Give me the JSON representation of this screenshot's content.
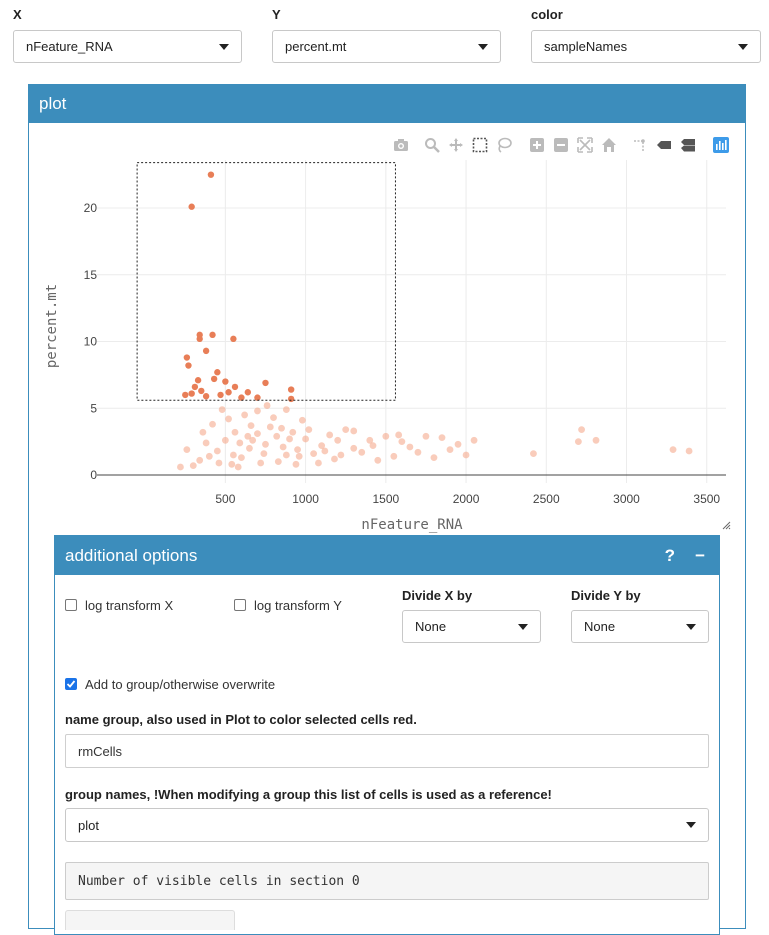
{
  "selectors": {
    "x": {
      "label": "X",
      "value": "nFeature_RNA"
    },
    "y": {
      "label": "Y",
      "value": "percent.mt"
    },
    "color": {
      "label": "color",
      "value": "sampleNames"
    }
  },
  "plot_box": {
    "title": "plot"
  },
  "toolbar": [
    "camera-icon",
    "zoom-icon",
    "pan-icon",
    "box-select-icon",
    "lasso-select-icon",
    "zoom-in-icon",
    "zoom-out-icon",
    "autoscale-icon",
    "reset-axes-icon",
    "spike-lines-icon",
    "hover-closest-icon",
    "hover-compare-icon",
    "plotly-logo-icon"
  ],
  "chart_data": {
    "type": "scatter",
    "xlabel": "nFeature_RNA",
    "ylabel": "percent.mt",
    "xlim": [
      -300,
      3620
    ],
    "ylim": [
      -0.6,
      23.6
    ],
    "xticks": [
      500,
      1000,
      1500,
      2000,
      2500,
      3000,
      3500
    ],
    "yticks": [
      0,
      5,
      10,
      15,
      20
    ],
    "selection_box": {
      "x": [
        -50,
        1560
      ],
      "y": [
        5.6,
        23.4
      ]
    },
    "series": [
      {
        "selected": true,
        "color": "#e87e57",
        "points": [
          [
            410,
            22.5
          ],
          [
            290,
            20.1
          ],
          [
            340,
            10.5
          ],
          [
            340,
            10.2
          ],
          [
            420,
            10.5
          ],
          [
            550,
            10.2
          ],
          [
            260,
            8.8
          ],
          [
            380,
            9.3
          ],
          [
            450,
            7.7
          ],
          [
            430,
            7.2
          ],
          [
            330,
            7.1
          ],
          [
            270,
            8.2
          ],
          [
            500,
            7.0
          ],
          [
            750,
            6.9
          ],
          [
            560,
            6.6
          ],
          [
            640,
            6.2
          ],
          [
            310,
            6.6
          ],
          [
            350,
            6.3
          ],
          [
            290,
            6.1
          ],
          [
            910,
            6.4
          ],
          [
            470,
            6.0
          ],
          [
            520,
            6.2
          ],
          [
            700,
            5.8
          ],
          [
            380,
            5.9
          ],
          [
            600,
            5.8
          ],
          [
            250,
            6.0
          ],
          [
            910,
            5.7
          ]
        ]
      },
      {
        "selected": false,
        "color": "#f4a383",
        "points": [
          [
            800,
            4.3
          ],
          [
            850,
            3.5
          ],
          [
            700,
            3.1
          ],
          [
            900,
            2.7
          ],
          [
            750,
            2.3
          ],
          [
            650,
            2.0
          ],
          [
            950,
            1.9
          ],
          [
            1050,
            1.6
          ],
          [
            600,
            1.3
          ],
          [
            500,
            2.6
          ],
          [
            550,
            1.5
          ],
          [
            1100,
            2.2
          ],
          [
            1200,
            2.6
          ],
          [
            1300,
            2.0
          ],
          [
            1400,
            2.6
          ],
          [
            1500,
            2.9
          ],
          [
            1600,
            2.5
          ],
          [
            1750,
            2.9
          ],
          [
            1850,
            2.8
          ],
          [
            1950,
            2.3
          ],
          [
            2050,
            2.6
          ],
          [
            1900,
            1.9
          ],
          [
            2000,
            1.5
          ],
          [
            1700,
            1.7
          ],
          [
            2420,
            1.6
          ],
          [
            2720,
            3.4
          ],
          [
            2700,
            2.5
          ],
          [
            2810,
            2.6
          ],
          [
            3290,
            1.9
          ],
          [
            3390,
            1.8
          ],
          [
            420,
            3.8
          ],
          [
            380,
            2.4
          ],
          [
            340,
            1.1
          ],
          [
            300,
            0.7
          ],
          [
            260,
            1.9
          ],
          [
            220,
            0.6
          ],
          [
            480,
            4.9
          ],
          [
            520,
            4.2
          ],
          [
            620,
            4.5
          ],
          [
            700,
            4.8
          ],
          [
            760,
            5.2
          ],
          [
            880,
            4.9
          ],
          [
            980,
            4.1
          ],
          [
            1020,
            3.4
          ],
          [
            1150,
            3.0
          ],
          [
            1250,
            3.4
          ],
          [
            1350,
            1.7
          ],
          [
            1450,
            1.1
          ],
          [
            1550,
            1.4
          ],
          [
            1650,
            2.1
          ],
          [
            720,
            0.9
          ],
          [
            830,
            1.0
          ],
          [
            940,
            0.8
          ],
          [
            460,
            0.9
          ],
          [
            580,
            0.6
          ],
          [
            1080,
            0.9
          ],
          [
            1180,
            1.2
          ],
          [
            660,
            3.7
          ],
          [
            780,
            3.6
          ],
          [
            920,
            3.2
          ],
          [
            560,
            3.2
          ],
          [
            860,
            2.1
          ],
          [
            1000,
            2.7
          ],
          [
            640,
            2.9
          ],
          [
            450,
            1.8
          ],
          [
            820,
            2.9
          ],
          [
            960,
            1.4
          ],
          [
            740,
            1.6
          ],
          [
            670,
            2.6
          ],
          [
            590,
            2.4
          ],
          [
            880,
            1.5
          ],
          [
            1120,
            1.8
          ],
          [
            1220,
            1.5
          ],
          [
            360,
            3.2
          ],
          [
            400,
            1.4
          ],
          [
            540,
            0.8
          ],
          [
            1300,
            3.3
          ],
          [
            1420,
            2.2
          ],
          [
            1580,
            3.0
          ],
          [
            1800,
            1.3
          ]
        ]
      }
    ]
  },
  "options": {
    "title": "additional options",
    "help": "?",
    "collapse": "−",
    "log_x": "log transform X",
    "log_y": "log transform Y",
    "divide_x": {
      "label": "Divide X by",
      "value": "None"
    },
    "divide_y": {
      "label": "Divide Y by",
      "value": "None"
    },
    "add_group": "Add to group/otherwise overwrite",
    "name_group_label": "name group, also used in Plot to color selected cells red.",
    "name_group_value": "rmCells",
    "group_names_label": "group names, !When modifying a group this list of cells is used as a reference!",
    "group_names_value": "plot",
    "visible_cells": "Number of visible cells in section 0"
  }
}
